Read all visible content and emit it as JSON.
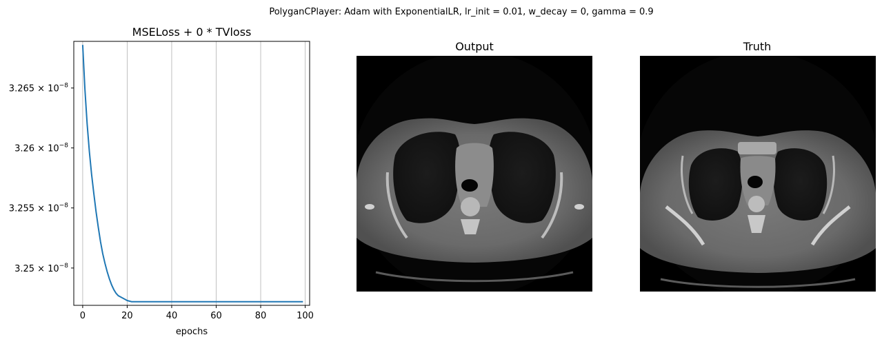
{
  "figure": {
    "suptitle": "PolyganCPlayer: Adam with ExponentialLR, lr_init = 0.01, w_decay = 0, gamma = 0.9"
  },
  "panels": {
    "output_title": "Output",
    "truth_title": "Truth"
  },
  "chart_data": {
    "type": "line",
    "title": "MSELoss + 0 * TVloss",
    "xlabel": "epochs",
    "ylabel": "",
    "xlim": [
      -4,
      102
    ],
    "ylim": [
      3.2469e-08,
      3.2689e-08
    ],
    "x_ticks": [
      0,
      20,
      40,
      60,
      80,
      100
    ],
    "x_tick_labels": [
      "0",
      "20",
      "40",
      "60",
      "80",
      "100"
    ],
    "y_ticks": [
      3.25e-08,
      3.255e-08,
      3.26e-08,
      3.265e-08
    ],
    "y_tick_labels": [
      {
        "mantissa": "3.25",
        "exp": "−8"
      },
      {
        "mantissa": "3.255",
        "exp": "−8"
      },
      {
        "mantissa": "3.26",
        "exp": "−8"
      },
      {
        "mantissa": "3.265",
        "exp": "−8"
      }
    ],
    "y_scale": "log",
    "grid": "x-only",
    "series": [
      {
        "color": "#1f77b4",
        "x": [
          0,
          1,
          2,
          3,
          4,
          5,
          6,
          7,
          8,
          9,
          10,
          11,
          12,
          13,
          14,
          15,
          16,
          17,
          18,
          19,
          20,
          22,
          25,
          30,
          40,
          50,
          60,
          70,
          80,
          90,
          99
        ],
        "y": [
          3.2686e-08,
          3.2649e-08,
          3.262e-08,
          3.2597e-08,
          3.2578e-08,
          3.2562e-08,
          3.2547e-08,
          3.2534e-08,
          3.2522e-08,
          3.2512e-08,
          3.2504e-08,
          3.2497e-08,
          3.2491e-08,
          3.2486e-08,
          3.2482e-08,
          3.2479e-08,
          3.2477e-08,
          3.2476e-08,
          3.2475e-08,
          3.2474e-08,
          3.2473e-08,
          3.2472e-08,
          3.2472e-08,
          3.2472e-08,
          3.2472e-08,
          3.2472e-08,
          3.2472e-08,
          3.2472e-08,
          3.2472e-08,
          3.2472e-08,
          3.2472e-08
        ]
      }
    ]
  }
}
